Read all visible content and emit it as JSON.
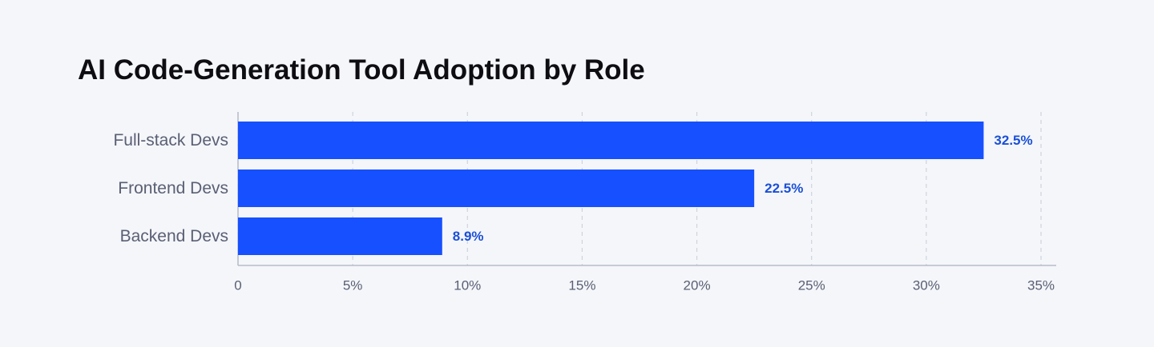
{
  "chart_data": {
    "type": "bar",
    "orientation": "horizontal",
    "title": "AI Code-Generation Tool Adoption by Role",
    "categories": [
      "Full-stack Devs",
      "Frontend Devs",
      "Backend Devs"
    ],
    "values": [
      32.5,
      22.5,
      8.9
    ],
    "value_labels": [
      "32.5%",
      "22.5%",
      "8.9%"
    ],
    "color": "#1650ff",
    "xlim": [
      0,
      35
    ],
    "xticks": [
      0,
      {
        "value": 5,
        "label": "5%"
      },
      {
        "value": 10,
        "label": "10%"
      },
      {
        "value": 15,
        "label": "15%"
      },
      {
        "value": 20,
        "label": "20%"
      },
      {
        "value": 25,
        "label": "25%"
      },
      {
        "value": 30,
        "label": "30%"
      },
      {
        "value": 35,
        "label": "35%"
      }
    ],
    "grid": true
  }
}
